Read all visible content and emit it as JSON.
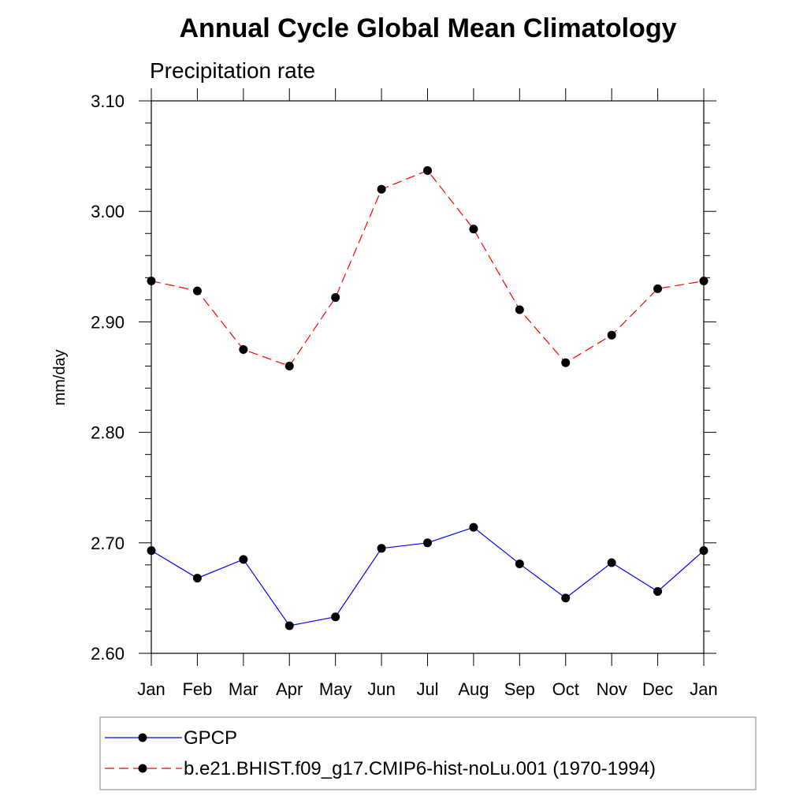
{
  "chart_data": {
    "type": "line",
    "title": "Annual Cycle Global Mean Climatology",
    "subtitle": "Precipitation rate",
    "xlabel": "",
    "ylabel": "mm/day",
    "categories": [
      "Jan",
      "Feb",
      "Mar",
      "Apr",
      "May",
      "Jun",
      "Jul",
      "Aug",
      "Sep",
      "Oct",
      "Nov",
      "Dec",
      "Jan"
    ],
    "ylim": [
      2.6,
      3.1
    ],
    "yticks": [
      "2.60",
      "2.70",
      "2.80",
      "2.90",
      "3.00",
      "3.10"
    ],
    "grid": false,
    "legend_position": "bottom",
    "series": [
      {
        "name": "GPCP",
        "color": "#0000ff",
        "style": "solid",
        "marker": "filled-circle",
        "values": [
          2.693,
          2.668,
          2.685,
          2.625,
          2.633,
          2.695,
          2.7,
          2.714,
          2.681,
          2.65,
          2.682,
          2.656,
          2.693
        ]
      },
      {
        "name": "b.e21.BHIST.f09_g17.CMIP6-hist-noLu.001 (1970-1994)",
        "color": "#ff0000",
        "style": "dashed",
        "marker": "filled-circle",
        "values": [
          2.937,
          2.928,
          2.875,
          2.86,
          2.922,
          3.02,
          3.037,
          2.984,
          2.911,
          2.863,
          2.888,
          2.93,
          2.937
        ]
      }
    ]
  }
}
